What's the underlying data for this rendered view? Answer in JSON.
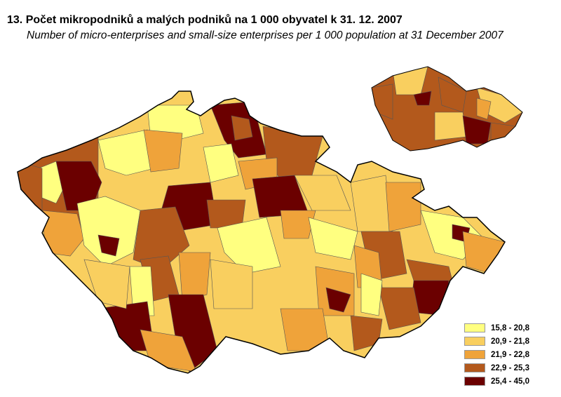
{
  "title": "13. Počet mikropodniků a malých podniků na 1 000 obyvatel k 31. 12. 2007",
  "subtitle": "Number of micro-enterprises and small-size enterprises per 1 000 population at 31 December 2007",
  "legend": [
    {
      "label": "15,8 - 20,8",
      "color": "#FFFF80"
    },
    {
      "label": "20,9 - 21,8",
      "color": "#F9CF5F"
    },
    {
      "label": "21,9 - 22,8",
      "color": "#EFA33A"
    },
    {
      "label": "22,9 - 25,3",
      "color": "#B3591C"
    },
    {
      "label": "25,4 - 45,0",
      "color": "#6B0000"
    }
  ],
  "colors": {
    "border": "#000000",
    "district_border": "#555555"
  }
}
